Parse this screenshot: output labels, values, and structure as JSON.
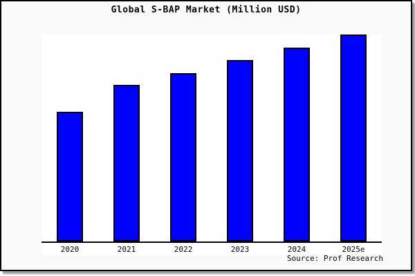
{
  "chart_data": {
    "type": "bar",
    "title": "Global S-BAP Market (Million USD)",
    "categories": [
      "2020",
      "2021",
      "2022",
      "2023",
      "2024",
      "2025e"
    ],
    "values": [
      188,
      227,
      244,
      263,
      281,
      300
    ],
    "value_note": "No y-axis scale shown; values are relative bar heights in pixels",
    "ylim": [
      0,
      300
    ],
    "xlabel": "",
    "ylabel": "",
    "grid": false,
    "legend": false,
    "bar_color": "#0000ff",
    "bar_border_color": "#000000"
  },
  "source": {
    "label": "Source: Prof Research"
  },
  "colors": {
    "page_background": "#fafafa",
    "plot_background": "#ffffff",
    "frame_border": "#000000",
    "axis": "#000000",
    "shadow": "#9c9c9c"
  }
}
